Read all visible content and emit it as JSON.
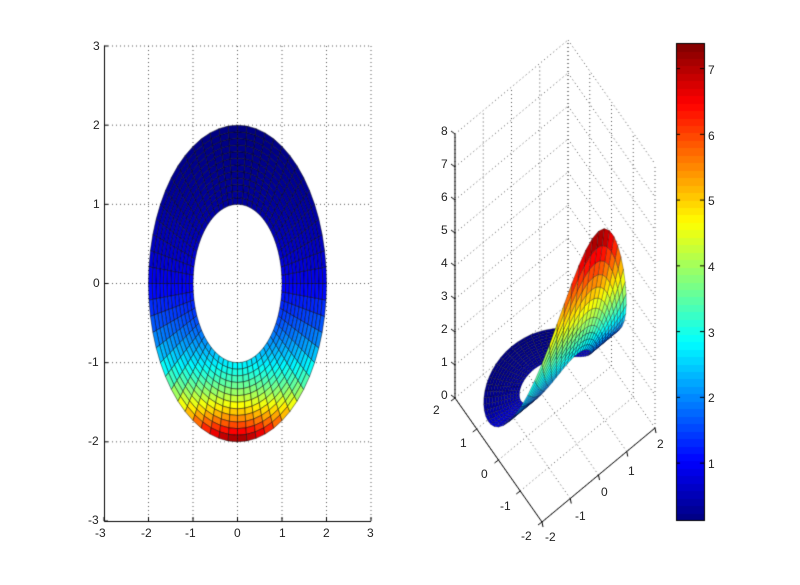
{
  "chart_data": [
    {
      "type": "surface-2d-view",
      "title": "",
      "description": "Annular region 1<=r<=2 in polar coordinates, colored by z = exp(-y), viewed from top",
      "xlabel": "",
      "ylabel": "",
      "xlim": [
        -3,
        3
      ],
      "ylim": [
        -3,
        3
      ],
      "xticks": [
        -3,
        -2,
        -1,
        0,
        1,
        2,
        3
      ],
      "yticks": [
        -3,
        -2,
        -1,
        0,
        1,
        2,
        3
      ],
      "grid": true,
      "surface": {
        "r_inner": 1,
        "r_outer": 2,
        "z_function": "exp(-y)",
        "radial_divisions": 12,
        "angular_divisions": 60
      }
    },
    {
      "type": "surface-3d",
      "title": "",
      "description": "Same annulus surface z = exp(-y) shown in 3D perspective",
      "xlim": [
        -2,
        2
      ],
      "ylim": [
        -2,
        2
      ],
      "zlim": [
        0,
        8
      ],
      "xticks": [
        -2,
        -1,
        0,
        1,
        2
      ],
      "yticks": [
        2,
        1,
        0,
        -1,
        -2
      ],
      "zticks": [
        0,
        1,
        2,
        3,
        4,
        5,
        6,
        7,
        8
      ],
      "grid": true
    },
    {
      "type": "colorbar",
      "colormap": "jet",
      "range": [
        0.135,
        7.389
      ],
      "ticks": [
        1,
        2,
        3,
        4,
        5,
        6,
        7
      ]
    }
  ],
  "ticks": {
    "left_x": [
      "-3",
      "-2",
      "-1",
      "0",
      "1",
      "2",
      "3"
    ],
    "left_y": [
      "3",
      "2",
      "1",
      "0",
      "-1",
      "-2",
      "-3"
    ],
    "z": [
      "8",
      "7",
      "6",
      "5",
      "4",
      "3",
      "2",
      "1",
      "0"
    ],
    "y3d": [
      "2",
      "1",
      "0",
      "-1",
      "-2"
    ],
    "x3d": [
      "-2",
      "-1",
      "0",
      "1",
      "2"
    ],
    "cbar": [
      "7",
      "6",
      "5",
      "4",
      "3",
      "2",
      "1"
    ]
  }
}
